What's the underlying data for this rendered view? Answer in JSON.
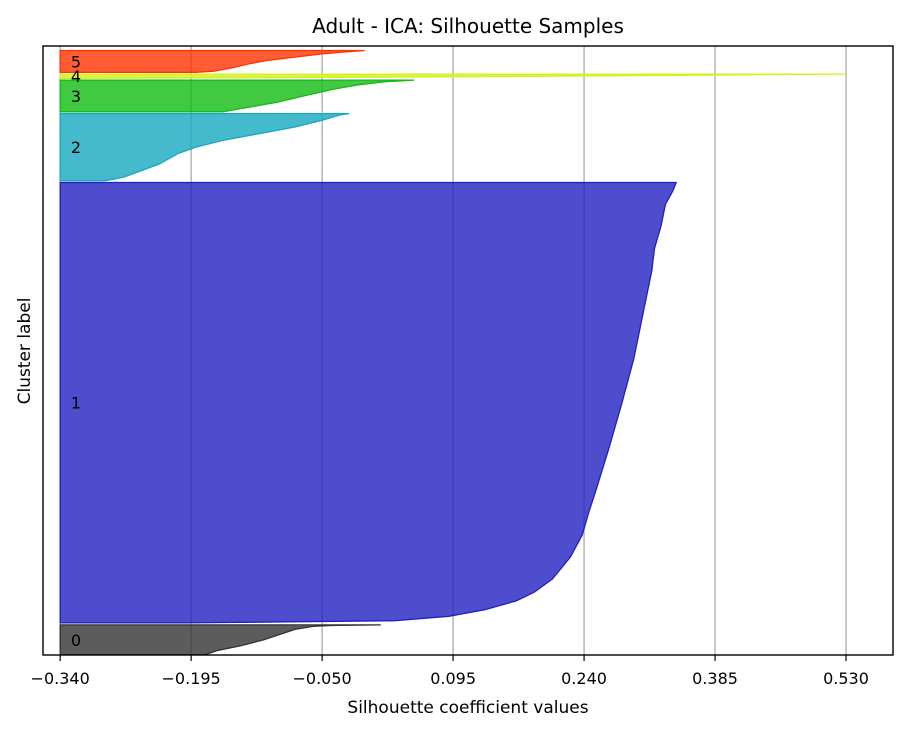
{
  "chart_data": {
    "type": "area",
    "title": "Adult - ICA: Silhouette Samples",
    "xlabel": "Silhouette coefficient values",
    "ylabel": "Cluster label",
    "xlim": [
      -0.359,
      0.582
    ],
    "ylim": [
      0,
      33600
    ],
    "xticks": [
      -0.34,
      -0.195,
      -0.05,
      0.095,
      0.24,
      0.385,
      0.53
    ],
    "xtick_labels": [
      "−0.340",
      "−0.195",
      "−0.050",
      "0.095",
      "0.240",
      "0.385",
      "0.530"
    ],
    "grid": "x",
    "baseline": -0.34,
    "clusters": [
      {
        "label": "0",
        "color": "#333333",
        "start": 10,
        "size": 1650,
        "profile": [
          [
            0,
            0.015
          ],
          [
            0.02,
            -0.04
          ],
          [
            0.05,
            -0.06
          ],
          [
            0.15,
            -0.08
          ],
          [
            0.3,
            -0.095
          ],
          [
            0.5,
            -0.115
          ],
          [
            0.7,
            -0.14
          ],
          [
            0.85,
            -0.165
          ],
          [
            1,
            -0.18
          ]
        ]
      },
      {
        "label": "1",
        "color": "#2020c0",
        "start": 1770,
        "size": 24300,
        "profile": [
          [
            0,
            0.342
          ],
          [
            0.02,
            0.338
          ],
          [
            0.05,
            0.33
          ],
          [
            0.1,
            0.325
          ],
          [
            0.15,
            0.318
          ],
          [
            0.2,
            0.315
          ],
          [
            0.25,
            0.31
          ],
          [
            0.3,
            0.305
          ],
          [
            0.4,
            0.295
          ],
          [
            0.5,
            0.282
          ],
          [
            0.6,
            0.268
          ],
          [
            0.7,
            0.253
          ],
          [
            0.75,
            0.245
          ],
          [
            0.8,
            0.238
          ],
          [
            0.85,
            0.225
          ],
          [
            0.9,
            0.205
          ],
          [
            0.93,
            0.185
          ],
          [
            0.95,
            0.165
          ],
          [
            0.97,
            0.13
          ],
          [
            0.985,
            0.09
          ],
          [
            0.995,
            0.03
          ],
          [
            1,
            -0.2
          ]
        ]
      },
      {
        "label": "2",
        "color": "#16a9c0",
        "start": 26170,
        "size": 3700,
        "profile": [
          [
            0,
            -0.02
          ],
          [
            0.02,
            -0.03
          ],
          [
            0.1,
            -0.05
          ],
          [
            0.2,
            -0.08
          ],
          [
            0.3,
            -0.12
          ],
          [
            0.4,
            -0.16
          ],
          [
            0.5,
            -0.19
          ],
          [
            0.6,
            -0.21
          ],
          [
            0.75,
            -0.23
          ],
          [
            0.85,
            -0.25
          ],
          [
            0.95,
            -0.27
          ],
          [
            1,
            -0.29
          ]
        ]
      },
      {
        "label": "3",
        "color": "#11bb11",
        "start": 29970,
        "size": 1750,
        "profile": [
          [
            0,
            0.052
          ],
          [
            0.05,
            0.02
          ],
          [
            0.15,
            -0.01
          ],
          [
            0.3,
            -0.04
          ],
          [
            0.5,
            -0.07
          ],
          [
            0.7,
            -0.1
          ],
          [
            0.9,
            -0.14
          ],
          [
            1,
            -0.16
          ]
        ]
      },
      {
        "label": "4",
        "color": "#d4f01e",
        "start": 31820,
        "size": 230,
        "profile": [
          [
            0,
            0.53
          ],
          [
            0.1,
            0.46
          ],
          [
            0.3,
            0.35
          ],
          [
            0.5,
            0.2
          ],
          [
            0.7,
            0.05
          ],
          [
            0.85,
            -0.1
          ],
          [
            1,
            -0.34
          ]
        ]
      },
      {
        "label": "5",
        "color": "#ff3300",
        "start": 32150,
        "size": 1200,
        "profile": [
          [
            0,
            -0.003
          ],
          [
            0.05,
            -0.02
          ],
          [
            0.15,
            -0.05
          ],
          [
            0.3,
            -0.08
          ],
          [
            0.45,
            -0.11
          ],
          [
            0.6,
            -0.13
          ],
          [
            0.8,
            -0.15
          ],
          [
            0.95,
            -0.17
          ],
          [
            1,
            -0.19
          ]
        ]
      }
    ]
  }
}
